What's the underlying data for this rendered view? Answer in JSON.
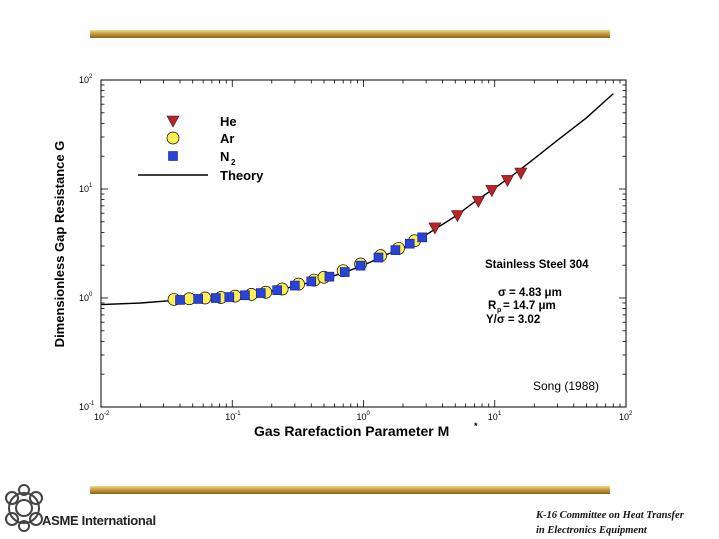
{
  "chart_data": {
    "type": "scatter",
    "title": "",
    "xlabel": "Gas Rarefaction Parameter  M",
    "xlabel_sup": "*",
    "ylabel": "Dimensionless Gap Resistance  G",
    "xscale": "log",
    "yscale": "log",
    "xlim": [
      0.01,
      100
    ],
    "ylim": [
      0.1,
      100
    ],
    "x_ticks": [
      {
        "base": "10",
        "exp": "-2",
        "value": 0.01
      },
      {
        "base": "10",
        "exp": "-1",
        "value": 0.1
      },
      {
        "base": "10",
        "exp": "0",
        "value": 1
      },
      {
        "base": "10",
        "exp": "1",
        "value": 10
      },
      {
        "base": "10",
        "exp": "2",
        "value": 100
      }
    ],
    "y_ticks": [
      {
        "base": "10",
        "exp": "-1",
        "value": 0.1
      },
      {
        "base": "10",
        "exp": "0",
        "value": 1
      },
      {
        "base": "10",
        "exp": "1",
        "value": 10
      },
      {
        "base": "10",
        "exp": "2",
        "value": 100
      }
    ],
    "grid": false,
    "legend_position": "top-left",
    "legend": [
      {
        "label": "He",
        "marker": "triangle-down",
        "color": "#b3262a"
      },
      {
        "label": "Ar",
        "marker": "circle",
        "color": "#ffee55"
      },
      {
        "label": "N",
        "sub": "2",
        "marker": "square",
        "color": "#2a43d6"
      },
      {
        "label": "Theory",
        "marker": "line",
        "color": "#000000"
      }
    ],
    "series": [
      {
        "name": "He",
        "marker": "triangle-down",
        "color": "#b3262a",
        "x": [
          3.5,
          5.2,
          7.5,
          9.5,
          12.5,
          15.8
        ],
        "y": [
          4.4,
          5.7,
          7.7,
          9.7,
          12.0,
          14.0
        ]
      },
      {
        "name": "Ar",
        "marker": "circle",
        "color": "#ffee55",
        "x": [
          0.036,
          0.047,
          0.062,
          0.082,
          0.105,
          0.14,
          0.18,
          0.24,
          0.32,
          0.42,
          0.5,
          0.7,
          0.95,
          1.35,
          1.85,
          2.45
        ],
        "y": [
          0.97,
          0.985,
          1.0,
          1.01,
          1.04,
          1.08,
          1.13,
          1.21,
          1.34,
          1.46,
          1.55,
          1.78,
          2.05,
          2.45,
          2.85,
          3.35
        ]
      },
      {
        "name": "N2",
        "marker": "square",
        "color": "#2a43d6",
        "x": [
          0.04,
          0.055,
          0.075,
          0.095,
          0.125,
          0.165,
          0.22,
          0.3,
          0.4,
          0.55,
          0.72,
          0.95,
          1.3,
          1.75,
          2.25,
          2.8
        ],
        "y": [
          0.96,
          0.98,
          1.0,
          1.02,
          1.06,
          1.11,
          1.18,
          1.3,
          1.42,
          1.57,
          1.73,
          1.98,
          2.35,
          2.75,
          3.15,
          3.6
        ]
      },
      {
        "name": "Theory",
        "marker": "line",
        "color": "#000000",
        "x": [
          0.01,
          0.02,
          0.04,
          0.07,
          0.1,
          0.15,
          0.2,
          0.3,
          0.5,
          0.7,
          1.0,
          1.5,
          2.0,
          3.0,
          5.0,
          7.0,
          10.0,
          15.0,
          20.0,
          30.0,
          50.0,
          80.0
        ],
        "y": [
          0.87,
          0.9,
          0.96,
          1.0,
          1.04,
          1.1,
          1.16,
          1.28,
          1.5,
          1.7,
          2.0,
          2.5,
          2.9,
          3.8,
          5.6,
          7.6,
          10.2,
          14.5,
          19.0,
          28.0,
          45.0,
          75.0
        ]
      }
    ],
    "annotations": [
      {
        "text": "Stainless Steel 304"
      },
      {
        "text": "σ = 4.83 μm"
      },
      {
        "text": "R",
        "sub": "p",
        "rest": " = 14.7 μm"
      },
      {
        "text": "Y/σ = 3.02"
      },
      {
        "text": "Song  (1988)"
      }
    ]
  },
  "footer": {
    "logo_text": "ASME International",
    "note_line1": "K-16 Committee on Heat Transfer",
    "note_line2": "in Electronics Equipment"
  }
}
